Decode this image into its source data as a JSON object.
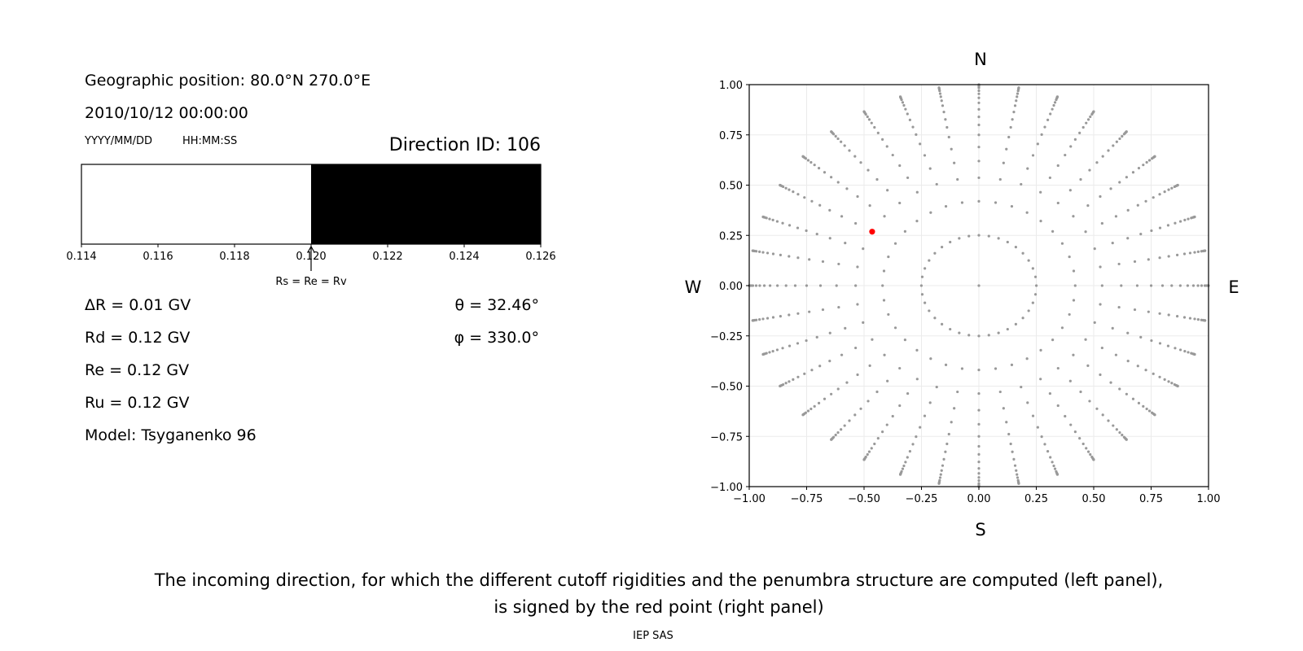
{
  "left_panel": {
    "geo_position": "Geographic position: 80.0°N 270.0°E",
    "datetime": "2010/10/12 00:00:00",
    "date_format": "YYYY/MM/DD",
    "time_format": "HH:MM:SS",
    "direction_id": "Direction ID: 106",
    "delta_r": "ΔR = 0.01 GV",
    "rd": "Rd = 0.12 GV",
    "re": "Re = 0.12 GV",
    "ru": "Ru = 0.12 GV",
    "model": "Model: Tsyganenko 96",
    "theta": "θ = 32.46°",
    "phi": "φ = 330.0°"
  },
  "penumbra_bar": {
    "xlim": [
      0.114,
      0.126
    ],
    "ticks": [
      "0.114",
      "0.116",
      "0.118",
      "0.120",
      "0.122",
      "0.124",
      "0.126"
    ],
    "allowed_from": 0.114,
    "forbidden_from": 0.12,
    "arrow_at": 0.12,
    "arrow_label": "Rs = Re = Rv",
    "colors": {
      "allowed": "#ffffff",
      "forbidden": "#000000"
    }
  },
  "compass": {
    "north": "N",
    "south": "S",
    "west": "W",
    "east": "E"
  },
  "chart_data": {
    "type": "scatter",
    "xlim": [
      -1.0,
      1.0
    ],
    "ylim": [
      -1.0,
      1.0
    ],
    "grid": true,
    "xticks": [
      "−1.00",
      "−0.75",
      "−0.50",
      "−0.25",
      "0.00",
      "0.25",
      "0.50",
      "0.75",
      "1.00"
    ],
    "yticks": [
      "1.00",
      "0.75",
      "0.50",
      "0.25",
      "0.00",
      "−0.25",
      "−0.50",
      "−0.75",
      "−1.00"
    ],
    "tick_values": [
      -1.0,
      -0.75,
      -0.5,
      -0.25,
      0.0,
      0.25,
      0.5,
      0.75,
      1.0
    ],
    "directions_grid": {
      "azimuths_deg_step": 10,
      "inner_ring_zenith_deg": 14.5,
      "spoke_zenith_deg": [
        24.8,
        32.46,
        38.3,
        43.6,
        48.6,
        53.1,
        57.1,
        61.3,
        65.4,
        69.1,
        72.6,
        75.9,
        79.8,
        82.5,
        85.0,
        87.5,
        90.0
      ],
      "center": true,
      "color": "#999999"
    },
    "selected_direction": {
      "theta_deg": 32.46,
      "phi_deg": 330.0,
      "color": "#ff0000"
    }
  },
  "caption": {
    "line1": "The incoming direction, for which the different cutoff rigidities and the penumbra structure are computed (left panel),",
    "line2": "is signed by the red point (right panel)"
  },
  "footer": "IEP SAS"
}
